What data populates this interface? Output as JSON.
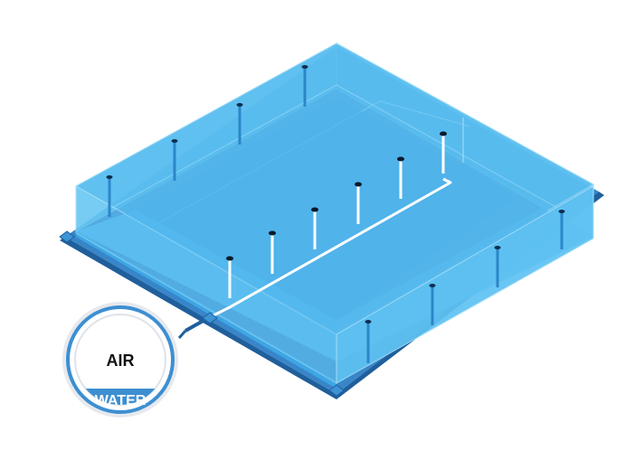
{
  "gauge": {
    "top_label": "AIR",
    "bottom_label": "WATER"
  },
  "colors": {
    "pool_fill": "#5fc3f2",
    "pool_side": "#4bb2ea",
    "pool_edge": "#2f8fcf",
    "base_plate": "#2d7fc6",
    "pipe_white": "#ffffff",
    "gauge_ring": "#3d8fd1",
    "gauge_water": "#3d8fd1",
    "gauge_text": "#111111"
  },
  "icons": {
    "gauge": "air-water-gauge-icon",
    "vent_pipe": "vertical-vent-pipe-icon"
  }
}
